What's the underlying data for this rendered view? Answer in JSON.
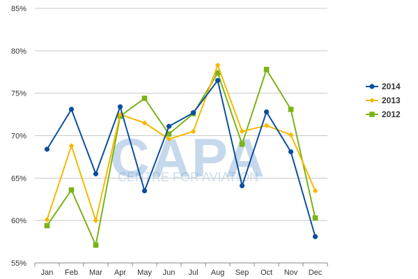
{
  "watermark": {
    "main": "CAPA",
    "sub": "CENTRE FOR AVIATION"
  },
  "chart_data": {
    "type": "line",
    "title": "",
    "xlabel": "",
    "ylabel": "",
    "categories": [
      "Jan",
      "Feb",
      "Mar",
      "Apr",
      "May",
      "Jun",
      "Jul",
      "Aug",
      "Sep",
      "Oct",
      "Nov",
      "Dec"
    ],
    "ylim": [
      55,
      85
    ],
    "yticks": [
      55,
      60,
      65,
      70,
      75,
      80,
      85
    ],
    "ytick_labels": [
      "55%",
      "60%",
      "65%",
      "70%",
      "75%",
      "80%",
      "85%"
    ],
    "grid": true,
    "legend_position": "right",
    "series": [
      {
        "name": "2014",
        "color": "#0b4f9c",
        "marker": "circle",
        "values": [
          68.4,
          73.1,
          65.5,
          73.4,
          63.5,
          71.1,
          72.7,
          76.5,
          64.1,
          72.8,
          68.1,
          58.1
        ]
      },
      {
        "name": "2013",
        "color": "#f5b800",
        "marker": "diamond",
        "values": [
          60.1,
          68.8,
          60.0,
          72.5,
          71.5,
          69.6,
          70.5,
          78.3,
          70.5,
          71.2,
          70.1,
          63.5
        ]
      },
      {
        "name": "2012",
        "color": "#7ab317",
        "marker": "square",
        "values": [
          59.4,
          63.6,
          57.1,
          72.3,
          74.4,
          70.2,
          72.6,
          77.4,
          69.0,
          77.8,
          73.1,
          60.3
        ]
      }
    ]
  }
}
